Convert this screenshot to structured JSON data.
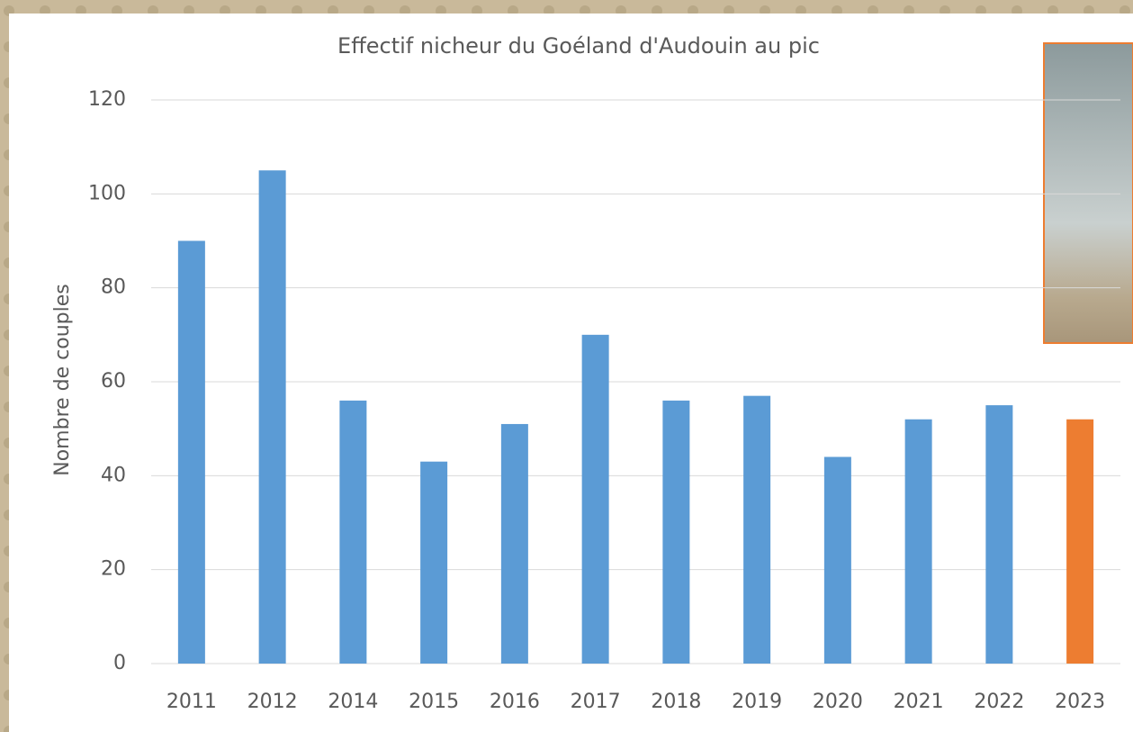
{
  "chart_data": {
    "type": "bar",
    "title": "Effectif nicheur du Goéland d'Audouin au pic",
    "y_label": "Nombre de couples",
    "categories": [
      "2011",
      "2012",
      "2014",
      "2015",
      "2016",
      "2017",
      "2018",
      "2019",
      "2020",
      "2021",
      "2022",
      "2023"
    ],
    "values": [
      90,
      105,
      56,
      43,
      51,
      70,
      56,
      57,
      44,
      52,
      55,
      52
    ],
    "colors": [
      "#5b9bd5",
      "#5b9bd5",
      "#5b9bd5",
      "#5b9bd5",
      "#5b9bd5",
      "#5b9bd5",
      "#5b9bd5",
      "#5b9bd5",
      "#5b9bd5",
      "#5b9bd5",
      "#5b9bd5",
      "#ed7d31"
    ],
    "ylim": [
      0,
      120
    ],
    "yticks": [
      0,
      20,
      40,
      60,
      80,
      100,
      120
    ],
    "grid": true
  }
}
